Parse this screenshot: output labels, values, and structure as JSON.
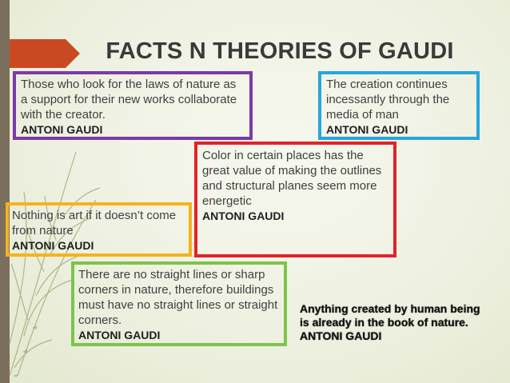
{
  "slide": {
    "title": "FACTS N THEORIES OF GAUDI",
    "colors": {
      "purple_box": "#7c39a8",
      "blue_box": "#26a6dd",
      "red_box": "#e3222a",
      "yellow_box": "#f7b21c",
      "green_box": "#7ec34a",
      "title_arrow": "#c94a22"
    },
    "quotes": {
      "purple": {
        "text": "Those who look for the laws of nature as a support for their new works collaborate with the creator.",
        "author": "ANTONI GAUDI"
      },
      "blue": {
        "text": "The creation continues incessantly through the media of man",
        "author": "ANTONI GAUDI"
      },
      "red": {
        "text": "Color in certain places has the great value of making the outlines and structural planes seem more energetic",
        "author": "ANTONI GAUDI"
      },
      "yellow": {
        "text": "Nothing is art if it doesn’t come from nature",
        "author": "ANTONI GAUDI"
      },
      "green": {
        "text": "There are no straight lines or sharp corners in nature, therefore buildings must have no straight lines or straight corners.",
        "author": "ANTONI GAUDI"
      },
      "free": {
        "text": "Anything created by human being is already in the book of nature.",
        "author": "ANTONI GAUDI"
      }
    }
  }
}
